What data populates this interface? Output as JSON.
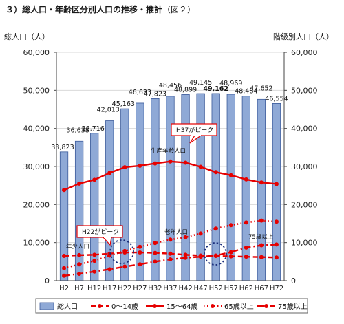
{
  "heading": {
    "main": "３）総人口・年齢区分別人口の推移・推計",
    "fig": "（図２）"
  },
  "chart_data": {
    "type": "bar",
    "y_left_label": "総人口（人）",
    "y_right_label": "階級別人口（人）",
    "ylim": [
      0,
      60000
    ],
    "yticks": [
      "0",
      "10,000",
      "20,000",
      "30,000",
      "40,000",
      "50,000",
      "60,000"
    ],
    "ytick_values": [
      0,
      10000,
      20000,
      30000,
      40000,
      50000,
      60000
    ],
    "categories": [
      "H2",
      "H7",
      "H12",
      "H17",
      "H22",
      "H27",
      "H32",
      "H37",
      "H42",
      "H47",
      "H52",
      "H57",
      "H62",
      "H67",
      "H72"
    ],
    "series": [
      {
        "name": "総人口",
        "kind": "bar",
        "color": "#8fa9d6",
        "values": [
          33823,
          36638,
          38716,
          42013,
          45163,
          46633,
          47823,
          48456,
          48899,
          49145,
          49162,
          48969,
          48484,
          47652,
          46554
        ],
        "labels": [
          "33,823",
          "36,638",
          "38,716",
          "42,013",
          "45,163",
          "46,633",
          "47,823",
          "48,456",
          "48,899",
          "49,145",
          "49,162",
          "48,969",
          "48,484",
          "47,652",
          "46,554"
        ]
      },
      {
        "name": "0～14歳",
        "kind": "line",
        "style": "dashed",
        "color": "#e60000",
        "values": [
          6500,
          6700,
          6800,
          7100,
          7400,
          7400,
          7300,
          7100,
          6800,
          6600,
          6500,
          6400,
          6300,
          6200,
          6100
        ]
      },
      {
        "name": "15～64歳",
        "kind": "line",
        "style": "solid",
        "color": "#e60000",
        "values": [
          23800,
          25500,
          26500,
          28300,
          29800,
          30200,
          30800,
          31300,
          31000,
          29900,
          28500,
          27700,
          26600,
          25800,
          25400
        ]
      },
      {
        "name": "65歳以上",
        "kind": "line",
        "style": "dotted",
        "color": "#e60000",
        "values": [
          3300,
          4300,
          5200,
          6600,
          7800,
          8900,
          9900,
          10800,
          11400,
          12400,
          13700,
          14600,
          15300,
          15800,
          15500
        ]
      },
      {
        "name": "75歳以上",
        "kind": "line",
        "style": "dashdot",
        "color": "#e60000",
        "values": [
          1300,
          1800,
          2400,
          3000,
          3700,
          4300,
          5000,
          5600,
          6000,
          6300,
          6600,
          7500,
          8700,
          9300,
          9500
        ]
      }
    ],
    "annotations": {
      "peak_h37": "H37がピーク",
      "peak_h22": "H22がピーク",
      "working_age": "生産年齢人口",
      "young": "年少人口",
      "elderly": "老年人口",
      "over75": "75歳以上"
    },
    "colors": {
      "bar": "#8fa9d6",
      "bar_edge": "#3b5a9a",
      "line": "#e60000",
      "callout_border": "#e60000"
    }
  }
}
